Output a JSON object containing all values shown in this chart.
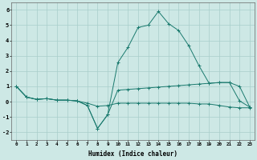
{
  "xlabel": "Humidex (Indice chaleur)",
  "x_values": [
    0,
    1,
    2,
    3,
    4,
    5,
    6,
    7,
    8,
    9,
    10,
    11,
    12,
    13,
    14,
    15,
    16,
    17,
    18,
    19,
    20,
    21,
    22,
    23
  ],
  "line1_y": [
    1.0,
    0.3,
    0.15,
    0.2,
    0.1,
    0.1,
    0.05,
    -0.25,
    -1.75,
    -0.85,
    0.75,
    0.8,
    0.85,
    0.9,
    0.95,
    1.0,
    1.05,
    1.1,
    1.15,
    1.2,
    1.25,
    1.25,
    1.0,
    -0.35
  ],
  "line2_y": [
    1.0,
    0.3,
    0.15,
    0.2,
    0.1,
    0.1,
    0.05,
    -0.25,
    -1.75,
    -0.85,
    2.55,
    3.55,
    4.85,
    5.0,
    5.9,
    5.1,
    4.65,
    3.65,
    2.35,
    1.2,
    1.25,
    1.25,
    0.05,
    -0.35
  ],
  "line3_y": [
    1.0,
    0.3,
    0.15,
    0.2,
    0.1,
    0.1,
    0.05,
    -0.1,
    -0.3,
    -0.25,
    -0.1,
    -0.1,
    -0.1,
    -0.1,
    -0.1,
    -0.1,
    -0.1,
    -0.1,
    -0.15,
    -0.15,
    -0.25,
    -0.35,
    -0.4,
    -0.4
  ],
  "line_color": "#1a7a6e",
  "bg_color": "#cde8e5",
  "grid_color": "#a8ceca",
  "ylim": [
    -2.5,
    6.5
  ],
  "xlim": [
    -0.5,
    23.5
  ],
  "yticks": [
    -2,
    -1,
    0,
    1,
    2,
    3,
    4,
    5,
    6
  ],
  "xticks": [
    0,
    1,
    2,
    3,
    4,
    5,
    6,
    7,
    8,
    9,
    10,
    11,
    12,
    13,
    14,
    15,
    16,
    17,
    18,
    19,
    20,
    21,
    22,
    23
  ],
  "xtick_labels": [
    "0",
    "1",
    "2",
    "3",
    "4",
    "5",
    "6",
    "7",
    "8",
    "9",
    "10",
    "11",
    "12",
    "13",
    "14",
    "15",
    "16",
    "17",
    "18",
    "19",
    "20",
    "21",
    "22",
    "23"
  ],
  "figwidth": 3.2,
  "figheight": 2.0,
  "dpi": 100
}
